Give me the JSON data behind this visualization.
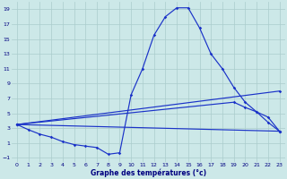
{
  "title": "Graphe des températures (°c)",
  "background_color": "#cce8e8",
  "grid_color": "#aacccc",
  "line_color": "#1a32c8",
  "xlim": [
    -0.5,
    23.5
  ],
  "ylim": [
    -1.5,
    20.0
  ],
  "xticks": [
    0,
    1,
    2,
    3,
    4,
    5,
    6,
    7,
    8,
    9,
    10,
    11,
    12,
    13,
    14,
    15,
    16,
    17,
    18,
    19,
    20,
    21,
    22,
    23
  ],
  "yticks": [
    -1,
    1,
    3,
    5,
    7,
    9,
    11,
    13,
    15,
    17,
    19
  ],
  "line_main": {
    "x": [
      0,
      1,
      2,
      3,
      4,
      5,
      6,
      7,
      8,
      9,
      10,
      11,
      12,
      13,
      14,
      15,
      16,
      17,
      18,
      19,
      20,
      21,
      22,
      23
    ],
    "y": [
      3.5,
      2.8,
      2.2,
      1.8,
      1.2,
      0.8,
      0.6,
      0.4,
      -0.5,
      -0.3,
      7.5,
      11.0,
      15.5,
      18.0,
      19.2,
      19.2,
      16.5,
      13.0,
      11.0,
      8.5,
      6.5,
      5.2,
      3.8,
      2.6
    ]
  },
  "line_upper": {
    "x": [
      0,
      23
    ],
    "y": [
      3.5,
      8.0
    ]
  },
  "line_mid": {
    "x": [
      0,
      19,
      20,
      21,
      22,
      23
    ],
    "y": [
      3.5,
      6.5,
      5.8,
      5.2,
      4.5,
      2.6
    ]
  },
  "line_lower": {
    "x": [
      0,
      23
    ],
    "y": [
      3.5,
      2.6
    ]
  }
}
